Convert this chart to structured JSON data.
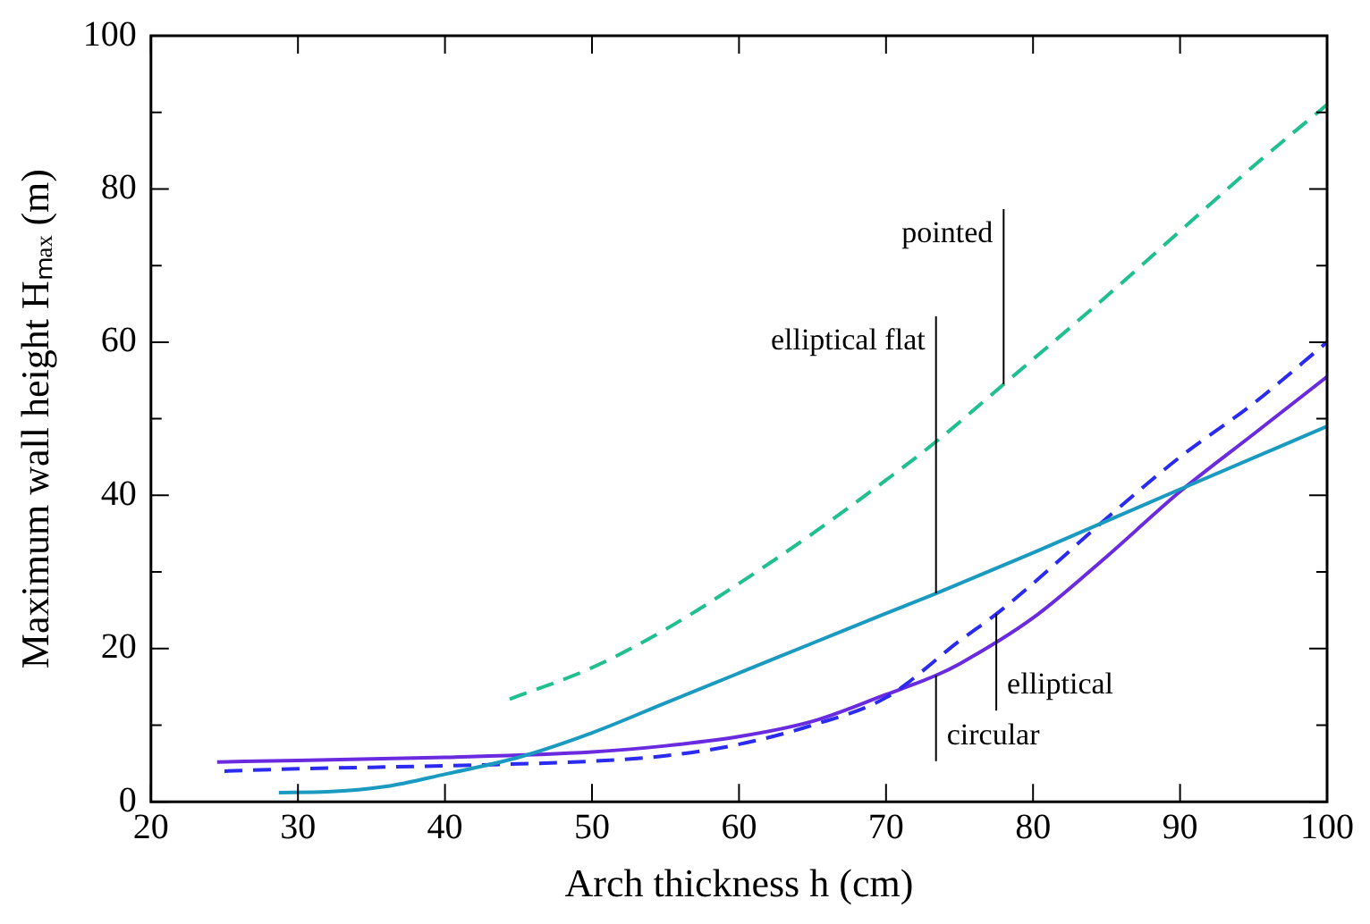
{
  "chart_data": {
    "type": "line",
    "xlabel": "Arch thickness h (cm)",
    "ylabel": "Maximum wall height Hₘₐₓ (m)",
    "xlim": [
      20,
      100
    ],
    "ylim": [
      0,
      100
    ],
    "xticks": [
      20,
      {
        "value": 30,
        "label": "30"
      },
      40,
      50,
      60,
      70,
      80,
      90,
      100
    ],
    "yticks": [
      0,
      {
        "value": 10,
        "label": null
      },
      20,
      {
        "value": 30,
        "label": null
      },
      40,
      {
        "value": 50,
        "label": null
      },
      60,
      {
        "value": 70,
        "label": null
      },
      80,
      {
        "value": 90,
        "label": null
      },
      100
    ],
    "grid": false,
    "legend": false,
    "marker": "none",
    "series": [
      {
        "color": "#1fbf8f",
        "line_style": "dashed",
        "x": [
          44.4,
          50,
          55,
          60,
          65,
          70,
          73.4,
          78,
          85,
          90,
          95,
          100
        ],
        "values": [
          13.4,
          17.5,
          22.5,
          28.5,
          35,
          42,
          47,
          54.5,
          66,
          74.5,
          83,
          91
        ]
      },
      {
        "color": "#1a9ac0",
        "line_style": "solid",
        "x": [
          28.7,
          32,
          36,
          40,
          45,
          50,
          55,
          60,
          65,
          70,
          73.4,
          80,
          90,
          100
        ],
        "values": [
          1.2,
          1.3,
          2,
          3.6,
          5.8,
          9,
          12.9,
          16.8,
          20.7,
          24.6,
          27.2,
          32.5,
          40.8,
          49
        ]
      },
      {
        "color": "#2a2af0",
        "line_style": "dashed",
        "x": [
          25,
          30,
          40,
          50,
          55,
          60,
          65,
          70,
          75,
          77.5,
          80,
          85,
          90,
          95,
          100
        ],
        "values": [
          4,
          4.3,
          4.7,
          5.3,
          6,
          7.5,
          10,
          13.6,
          21,
          24.5,
          28.5,
          37,
          45,
          52,
          60
        ]
      },
      {
        "color": "#6a2ae0",
        "line_style": "solid",
        "x": [
          24.5,
          30,
          40,
          50,
          55,
          60,
          65,
          70,
          73.4,
          75,
          80,
          85,
          90,
          95,
          100
        ],
        "values": [
          5.2,
          5.4,
          5.8,
          6.5,
          7.3,
          8.5,
          10.5,
          14,
          16.5,
          18,
          24,
          32,
          40.5,
          48,
          55.5
        ]
      }
    ],
    "annotations": [
      {
        "text": "pointed",
        "x": 78,
        "y": 54.5
      },
      {
        "text": "elliptical flat",
        "x": 73.4,
        "y": 27.2
      },
      {
        "text": "circular",
        "x": 73.4,
        "y": 16.5
      },
      {
        "text": "elliptical",
        "x": 77.5,
        "y": 24.5
      }
    ]
  }
}
